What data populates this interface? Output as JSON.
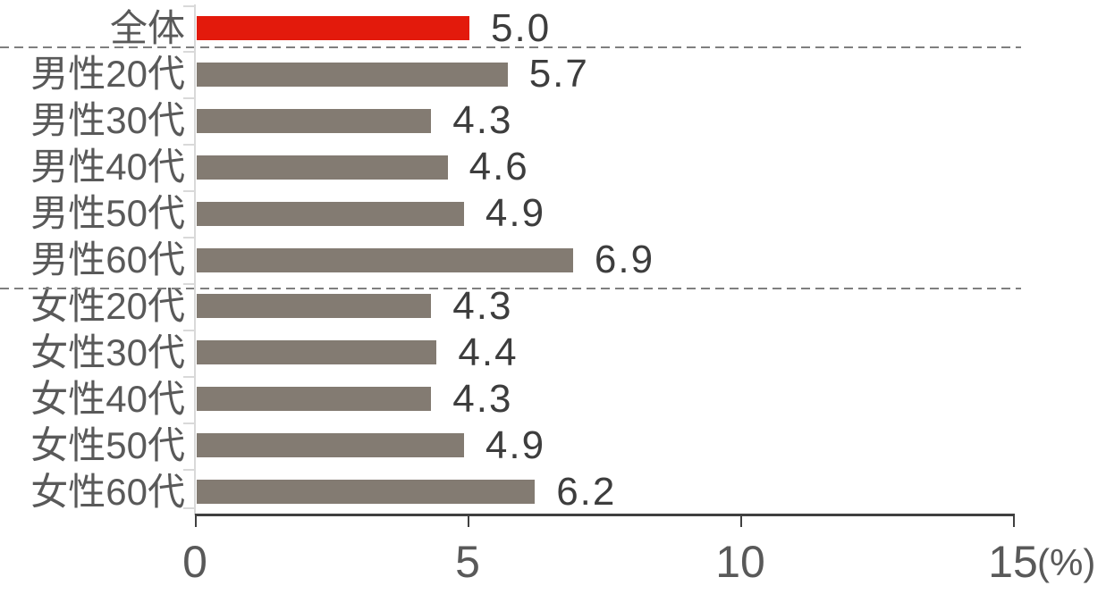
{
  "chart_data": {
    "type": "bar",
    "orientation": "horizontal",
    "title": "",
    "categories": [
      "全体",
      "男性20代",
      "男性30代",
      "男性40代",
      "男性50代",
      "男性60代",
      "女性20代",
      "女性30代",
      "女性40代",
      "女性50代",
      "女性60代"
    ],
    "values": [
      5.0,
      5.7,
      4.3,
      4.6,
      4.9,
      6.9,
      4.3,
      4.4,
      4.3,
      4.9,
      6.2
    ],
    "data_labels": [
      "5.0",
      "5.7",
      "4.3",
      "4.6",
      "4.9",
      "6.9",
      "4.3",
      "4.4",
      "4.3",
      "4.9",
      "6.2"
    ],
    "highlight_index": 0,
    "xlim": [
      0,
      15
    ],
    "x_ticks": [
      {
        "value": 0,
        "label": "0"
      },
      {
        "value": 5,
        "label": "5"
      },
      {
        "value": 10,
        "label": "10"
      },
      {
        "value": 15,
        "label": "15"
      }
    ],
    "x_axis_unit": "(%)",
    "separators_after_indices": [
      0,
      5
    ],
    "grid": false,
    "legend": false
  },
  "colors": {
    "highlight_bar": "#E31A0C",
    "bar": "#837B72",
    "category_text": "#595959",
    "value_text": "#3D3D3D",
    "tick_text": "#595959",
    "x_axis": "#404040",
    "y_axis": "#D9D9D9",
    "separator": "#7F7F7F",
    "background": "#FFFFFF"
  }
}
